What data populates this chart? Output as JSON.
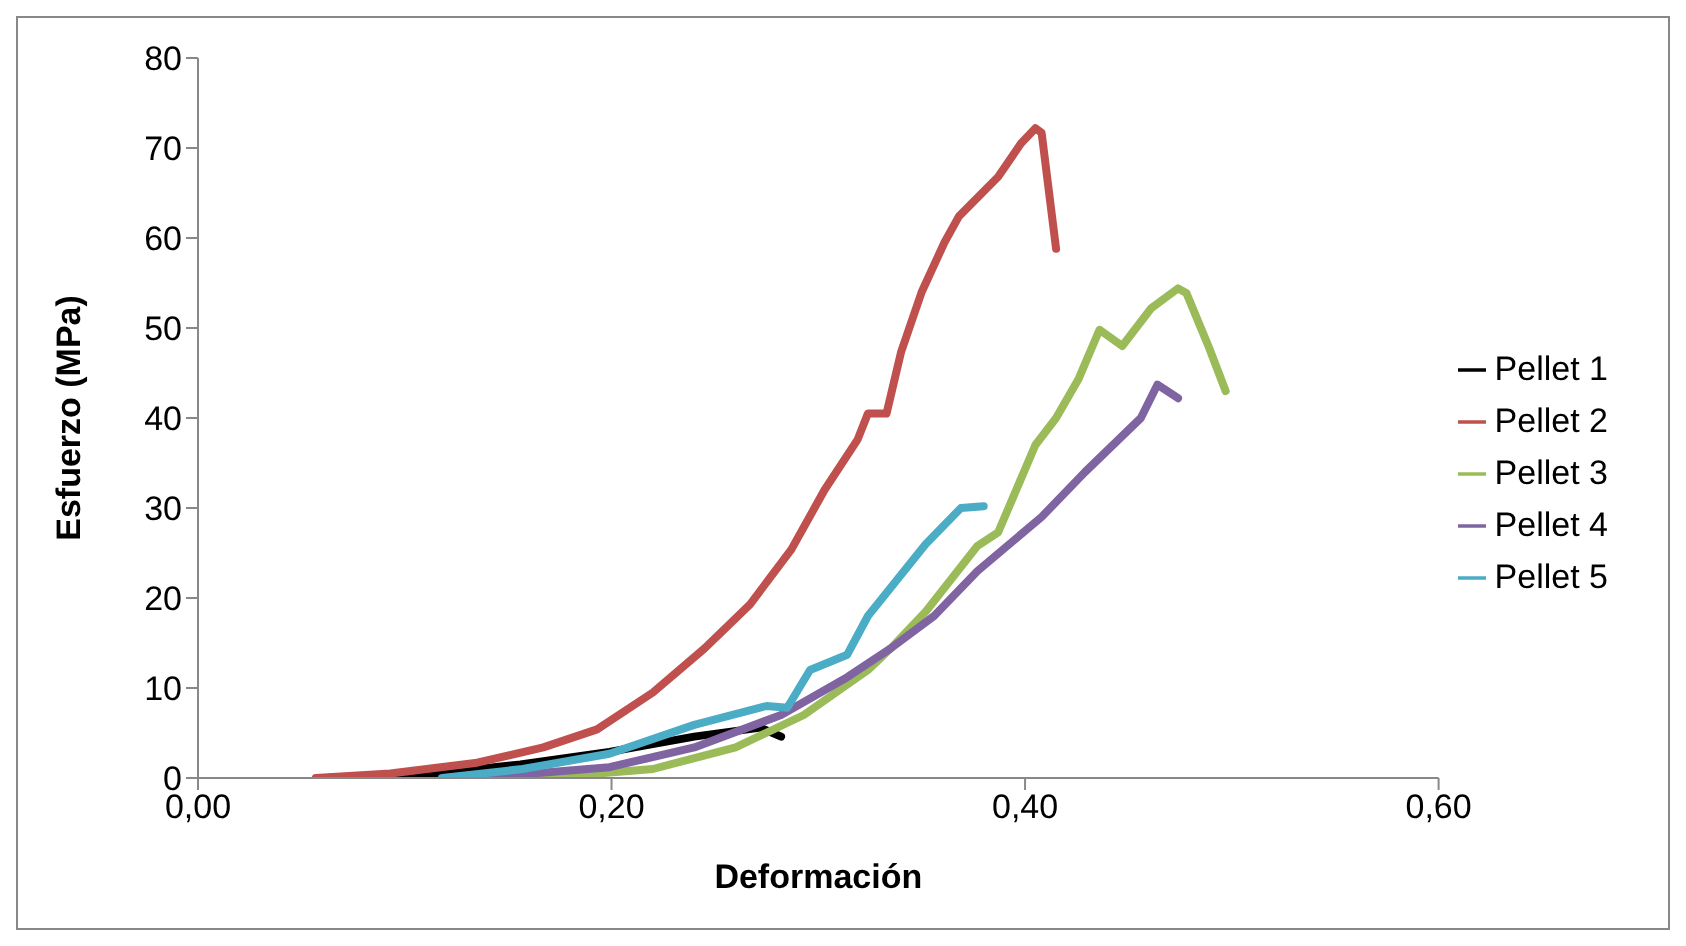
{
  "chart_data": {
    "type": "line",
    "xlabel": "Deformación",
    "ylabel": "Esfuerzo (MPa)",
    "xlim": [
      0,
      0.6
    ],
    "xticks": [
      {
        "value": 0,
        "label": "0,00"
      },
      {
        "value": 0.2,
        "label": "0,20"
      },
      {
        "value": 0.4,
        "label": "0,40"
      },
      {
        "value": 0.6,
        "label": "0,60"
      }
    ],
    "ylim": [
      0,
      80
    ],
    "yticks": [
      0,
      10,
      20,
      30,
      40,
      50,
      60,
      70,
      80
    ],
    "grid": false,
    "legend": "right",
    "marker": "none",
    "line_style": "solid",
    "series": [
      {
        "name": "Pellet 1",
        "color": "#000000",
        "x": [
          0.062,
          0.114,
          0.156,
          0.199,
          0.24,
          0.272,
          0.282
        ],
        "values": [
          0,
          0.5,
          1.5,
          2.9,
          4.6,
          5.6,
          4.6
        ]
      },
      {
        "name": "Pellet 2",
        "color": "#c0504d",
        "x": [
          0.057,
          0.093,
          0.135,
          0.167,
          0.193,
          0.22,
          0.245,
          0.267,
          0.287,
          0.303,
          0.319,
          0.324,
          0.333,
          0.34,
          0.35,
          0.361,
          0.368,
          0.387,
          0.398,
          0.405,
          0.408,
          0.415
        ],
        "values": [
          0,
          0.5,
          1.7,
          3.4,
          5.4,
          9.5,
          14.4,
          19.3,
          25.4,
          32,
          37.6,
          40.5,
          40.5,
          47.3,
          54,
          59.5,
          62.4,
          66.8,
          70.5,
          72.2,
          71.7,
          58.8
        ]
      },
      {
        "name": "Pellet 3",
        "color": "#9bbb59",
        "x": [
          0.167,
          0.22,
          0.26,
          0.293,
          0.324,
          0.335,
          0.352,
          0.377,
          0.387,
          0.405,
          0.415,
          0.426,
          0.436,
          0.447,
          0.461,
          0.474,
          0.478,
          0.489,
          0.497
        ],
        "values": [
          0,
          1,
          3.4,
          7,
          12,
          14.4,
          18.5,
          25.8,
          27.3,
          37,
          40,
          44.4,
          49.8,
          48,
          52.2,
          54.4,
          53.9,
          47.8,
          43
        ]
      },
      {
        "name": "Pellet 4",
        "color": "#8064a2",
        "x": [
          0.135,
          0.199,
          0.24,
          0.282,
          0.314,
          0.335,
          0.356,
          0.377,
          0.408,
          0.429,
          0.456,
          0.464,
          0.474
        ],
        "values": [
          0,
          1.2,
          3.4,
          7,
          11.2,
          14.4,
          18,
          23,
          29,
          34,
          40,
          43.7,
          42.2
        ]
      },
      {
        "name": "Pellet 5",
        "color": "#4bacc6",
        "x": [
          0.118,
          0.157,
          0.199,
          0.24,
          0.275,
          0.285,
          0.296,
          0.314,
          0.324,
          0.352,
          0.369,
          0.38
        ],
        "values": [
          0,
          1,
          2.7,
          5.9,
          8,
          7.8,
          12,
          13.7,
          18,
          26,
          30,
          30.2
        ]
      }
    ]
  }
}
